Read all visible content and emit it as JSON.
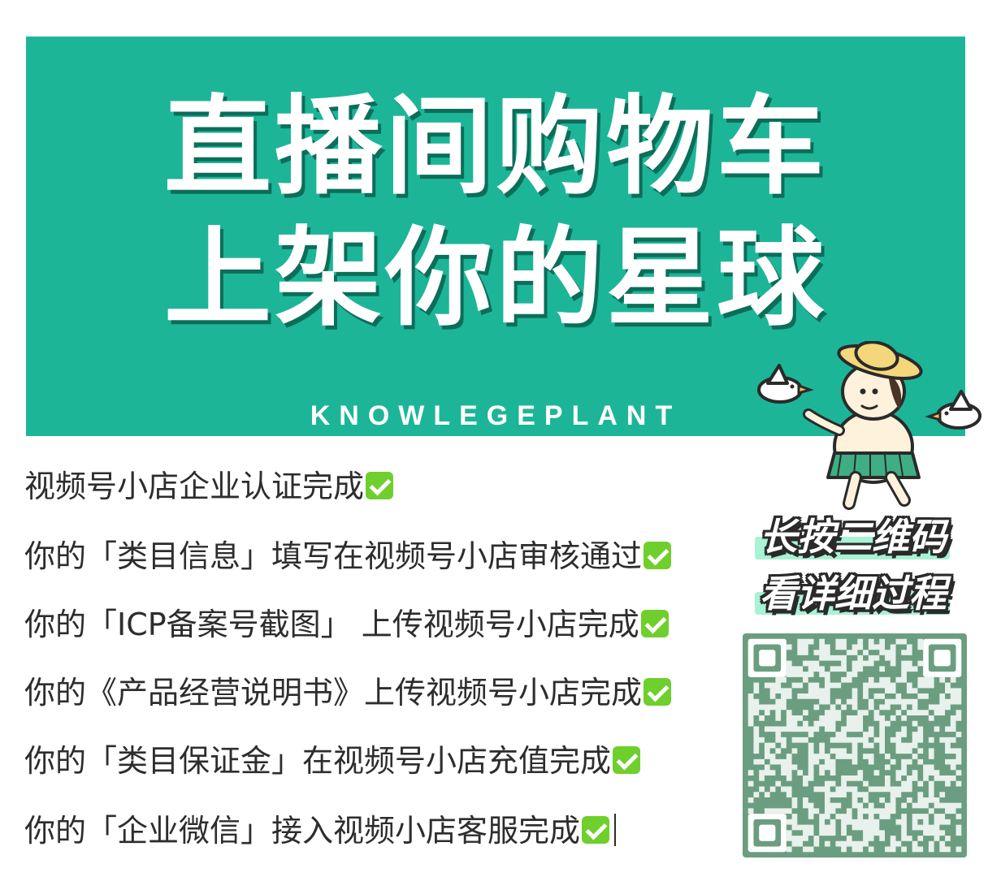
{
  "banner": {
    "headline_line1": "直播间购物车",
    "headline_line2": "上架你的星球",
    "brand": "KNOWLEGEPLANT",
    "background_color": "#1db598"
  },
  "checklist": {
    "items": [
      "视频号小店企业认证完成",
      "你的「类目信息」填写在视频号小店审核通过",
      "你的「ICP备案号截图」 上传视频号小店完成",
      "你的《产品经营说明书》上传视频号小店完成",
      "你的「类目保证金」在视频号小店充值完成",
      "你的「企业微信」接入视频小店客服完成"
    ],
    "check_icon": "check-mark-icon",
    "check_color": "#6fcf2c"
  },
  "callout": {
    "line1": "长按二维码",
    "line2": "看详细过程"
  },
  "qr": {
    "icon": "qr-code-icon",
    "color": "#6b9e80"
  },
  "mascot": {
    "icon": "mascot-illustration"
  }
}
